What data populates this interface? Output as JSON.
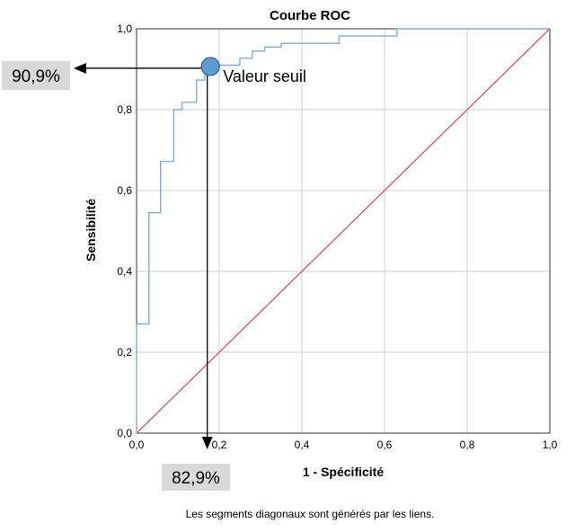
{
  "chart_data": {
    "type": "line",
    "title": "Courbe ROC",
    "xlabel": "1 - Spécificité",
    "ylabel": "Sensibilité",
    "xlim": [
      0,
      1
    ],
    "ylim": [
      0,
      1
    ],
    "x_ticks": [
      "0,0",
      "0,2",
      "0,4",
      "0,6",
      "0,8",
      "1,0"
    ],
    "y_ticks": [
      "0,0",
      "0,2",
      "0,4",
      "0,6",
      "0,8",
      "1,0"
    ],
    "grid": true,
    "footnote": "Les segments diagonaux sont générés par les liens.",
    "colors": {
      "roc": "#7aaede",
      "reference": "#e0577d",
      "marker": "#5b9bd5"
    },
    "series": [
      {
        "x": [
          0,
          0,
          0.003,
          0.003,
          0.03,
          0.03,
          0.058,
          0.058,
          0.09,
          0.09,
          0.11,
          0.11,
          0.145,
          0.145,
          0.165,
          0.165,
          0.19,
          0.19,
          0.25,
          0.25,
          0.28,
          0.28,
          0.31,
          0.31,
          0.35,
          0.35,
          0.49,
          0.49,
          0.63,
          0.63,
          1.0
        ],
        "y": [
          0,
          0.27,
          0.27,
          0.27,
          0.27,
          0.545,
          0.545,
          0.672,
          0.672,
          0.8,
          0.8,
          0.818,
          0.818,
          0.873,
          0.873,
          0.909,
          0.909,
          0.91,
          0.91,
          0.927,
          0.927,
          0.945,
          0.945,
          0.955,
          0.955,
          0.964,
          0.964,
          0.982,
          0.982,
          1.0,
          1.0
        ]
      },
      {
        "x": [
          0,
          1
        ],
        "y": [
          0,
          1
        ]
      }
    ],
    "annotations": {
      "threshold_label": "Valeur seuil",
      "threshold_point": {
        "x": 0.17,
        "y": 0.909
      },
      "sensitivity_callout": "90,9%",
      "specificity_callout": "82,9%"
    }
  }
}
